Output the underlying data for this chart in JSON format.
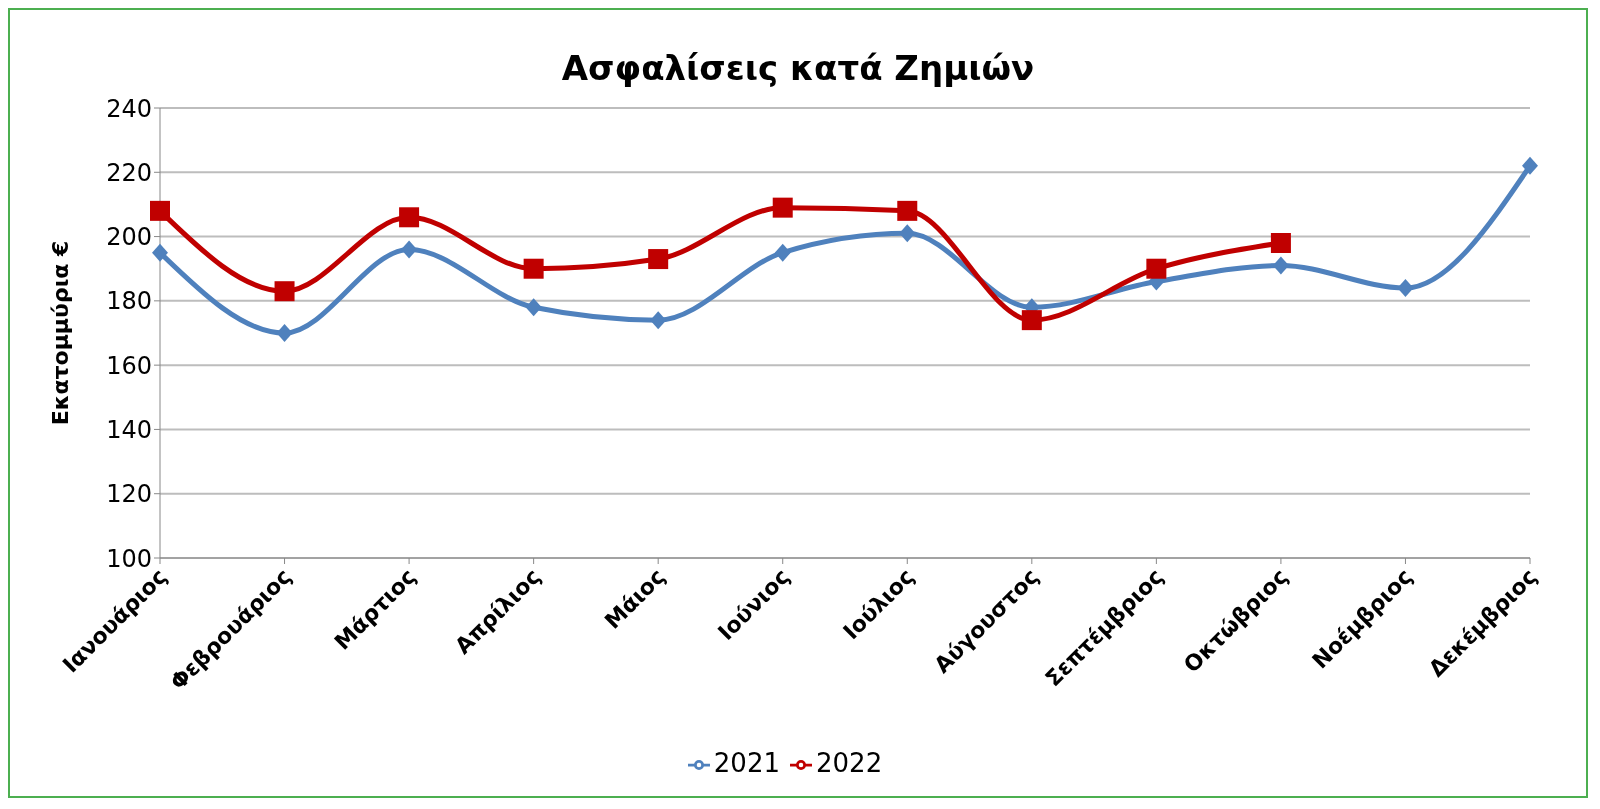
{
  "chart_data": {
    "type": "line",
    "title": "Ασφαλίσεις κατά Ζημιών",
    "ylabel": "Εκατομμύρια  €",
    "categories": [
      "Ιανουάριος",
      "Φεβρουάριος",
      "Μάρτιος",
      "Απρίλιος",
      "Μάιος",
      "Ιούνιος",
      "Ιούλιος",
      "Αύγουστος",
      "Σεπτέμβριος",
      "Οκτώβριος",
      "Νοέμβριος",
      "Δεκέμβριος"
    ],
    "series": [
      {
        "name": "2021",
        "color": "#4f81bd",
        "marker": "diamond",
        "values": [
          195,
          170,
          196,
          178,
          174,
          195,
          201,
          178,
          186,
          191,
          184,
          222
        ]
      },
      {
        "name": "2022",
        "color": "#c00000",
        "marker": "square",
        "values": [
          208,
          183,
          206,
          190,
          193,
          209,
          208,
          174,
          190,
          198,
          null,
          null
        ]
      }
    ],
    "ylim": [
      100,
      240
    ],
    "yticks": [
      100,
      120,
      140,
      160,
      180,
      200,
      220,
      240
    ],
    "grid": "y",
    "legend": "bottom",
    "line_style": "solid"
  }
}
